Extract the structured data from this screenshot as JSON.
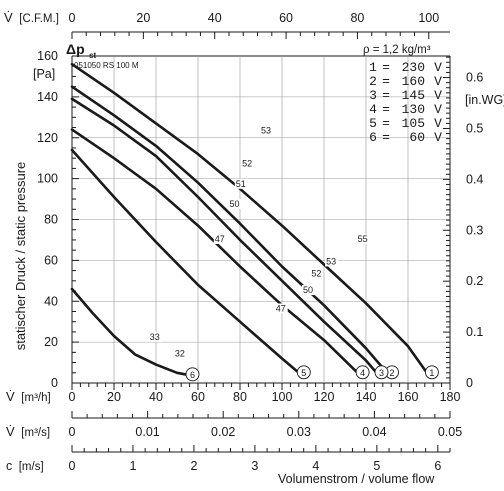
{
  "chart_data": {
    "type": "line",
    "title": "",
    "model": "051050 RS 100 M",
    "dp_label_main": "Δp",
    "dp_label_sub": "st",
    "density_label": "ρ = 1,2 kg/m³",
    "ylabel": "statischer Druck / static pressure",
    "y_unit": "[Pa]",
    "ylim": [
      0,
      160
    ],
    "y_ticks": [
      0,
      20,
      40,
      60,
      80,
      100,
      120,
      140,
      160
    ],
    "y2_unit": "[in.WG]",
    "y2_ticks": [
      0,
      0.1,
      0.2,
      0.3,
      0.4,
      0.5,
      0.6
    ],
    "xlim": [
      0,
      180
    ],
    "x_label": "V̇",
    "x_unit": "[m³/h]",
    "x_ticks": [
      0,
      20,
      40,
      60,
      80,
      100,
      120,
      140,
      160,
      180
    ],
    "top_axis": {
      "label": "V̇",
      "unit": "[C.F.M.]",
      "ticks": [
        0,
        20,
        40,
        60,
        80,
        100
      ]
    },
    "axis2": {
      "label": "V̇",
      "unit": "[m³/s]",
      "ticks": [
        "0",
        "0.01",
        "0.02",
        "0.03",
        "0.04",
        "0.05"
      ]
    },
    "axis3": {
      "label": "c",
      "unit": "[m/s]",
      "ticks": [
        "0",
        "1",
        "2",
        "3",
        "4",
        "5",
        "6"
      ]
    },
    "xlabel": "Volumenstrom / volume flow",
    "voltages": [
      {
        "num": "1",
        "eq": "=",
        "v": "230",
        "u": "V"
      },
      {
        "num": "2",
        "eq": "=",
        "v": "160",
        "u": "V"
      },
      {
        "num": "3",
        "eq": "=",
        "v": "145",
        "u": "V"
      },
      {
        "num": "4",
        "eq": "=",
        "v": "130",
        "u": "V"
      },
      {
        "num": "5",
        "eq": "=",
        "v": "105",
        "u": "V"
      },
      {
        "num": "6",
        "eq": "=",
        "v": "60",
        "u": "V"
      }
    ],
    "series": [
      {
        "name": "1",
        "x": [
          0,
          20,
          40,
          60,
          80,
          100,
          120,
          140,
          160,
          169
        ],
        "y": [
          156,
          142,
          127,
          112,
          95,
          77,
          58,
          39,
          18,
          5
        ]
      },
      {
        "name": "2",
        "x": [
          0,
          20,
          40,
          60,
          80,
          100,
          120,
          140,
          150
        ],
        "y": [
          145,
          131,
          116,
          98,
          78,
          57,
          38,
          17,
          5
        ]
      },
      {
        "name": "3",
        "x": [
          0,
          20,
          40,
          60,
          80,
          100,
          120,
          140,
          145
        ],
        "y": [
          139,
          126,
          111,
          91,
          70,
          50,
          30,
          11,
          5
        ]
      },
      {
        "name": "4",
        "x": [
          0,
          20,
          40,
          60,
          80,
          100,
          120,
          136
        ],
        "y": [
          124,
          110,
          95,
          77,
          57,
          38,
          21,
          5
        ]
      },
      {
        "name": "5",
        "x": [
          0,
          20,
          40,
          60,
          80,
          100,
          108
        ],
        "y": [
          114,
          91,
          69,
          48,
          30,
          12,
          5
        ]
      },
      {
        "name": "6",
        "x": [
          0,
          10,
          20,
          30,
          40,
          50,
          55
        ],
        "y": [
          46,
          34,
          23,
          14,
          9,
          5,
          4
        ]
      }
    ],
    "annotations": [
      {
        "text": "53",
        "x": 90,
        "y": 122
      },
      {
        "text": "52",
        "x": 81,
        "y": 106
      },
      {
        "text": "51",
        "x": 78,
        "y": 96
      },
      {
        "text": "50",
        "x": 75,
        "y": 86
      },
      {
        "text": "47",
        "x": 68,
        "y": 69
      },
      {
        "text": "55",
        "x": 136,
        "y": 69
      },
      {
        "text": "53",
        "x": 121,
        "y": 58
      },
      {
        "text": "52",
        "x": 114,
        "y": 52
      },
      {
        "text": "50",
        "x": 110,
        "y": 44
      },
      {
        "text": "47",
        "x": 97,
        "y": 35
      },
      {
        "text": "33",
        "x": 37,
        "y": 21
      },
      {
        "text": "32",
        "x": 49,
        "y": 13
      }
    ]
  }
}
